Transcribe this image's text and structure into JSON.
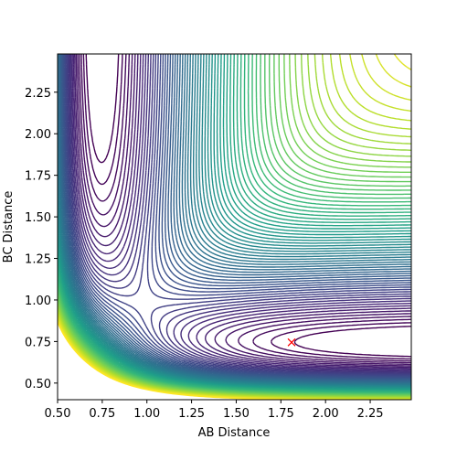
{
  "chart_data": {
    "type": "contour",
    "x_label": "AB Distance",
    "y_label": "BC Distance",
    "xlim": [
      0.5,
      2.48
    ],
    "ylim": [
      0.4,
      2.48
    ],
    "xticks": [
      {
        "value": 0.5,
        "label": "0.50"
      },
      {
        "value": 0.75,
        "label": "0.75"
      },
      {
        "value": 1.0,
        "label": "1.00"
      },
      {
        "value": 1.25,
        "label": "1.25"
      },
      {
        "value": 1.5,
        "label": "1.50"
      },
      {
        "value": 1.75,
        "label": "1.75"
      },
      {
        "value": 2.0,
        "label": "2.00"
      },
      {
        "value": 2.25,
        "label": "2.25"
      }
    ],
    "yticks": [
      {
        "value": 0.5,
        "label": "0.50"
      },
      {
        "value": 0.75,
        "label": "0.75"
      },
      {
        "value": 1.0,
        "label": "1.00"
      },
      {
        "value": 1.25,
        "label": "1.25"
      },
      {
        "value": 1.5,
        "label": "1.50"
      },
      {
        "value": 1.75,
        "label": "1.75"
      },
      {
        "value": 2.0,
        "label": "2.00"
      },
      {
        "value": 2.25,
        "label": "2.25"
      }
    ],
    "points": {
      "x": [
        1.81
      ],
      "y": [
        0.745
      ],
      "color": "red"
    }
  }
}
